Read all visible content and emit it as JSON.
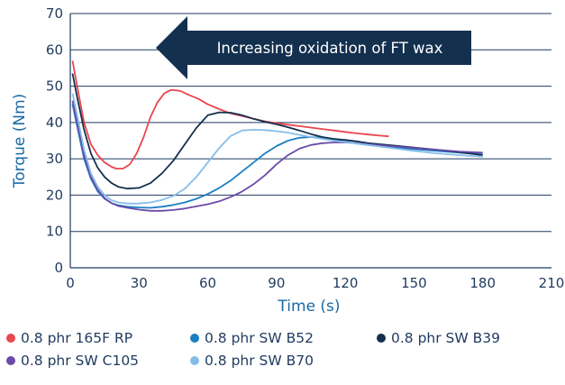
{
  "chart_data": {
    "type": "line",
    "title": "",
    "xlabel": "Time (s)",
    "ylabel": "Torque (Nm)",
    "xlim": [
      0,
      210
    ],
    "ylim": [
      0,
      70
    ],
    "xticks": [
      0,
      30,
      60,
      90,
      120,
      150,
      180,
      210
    ],
    "yticks": [
      0,
      10,
      20,
      30,
      40,
      50,
      60,
      70
    ],
    "grid": "horizontal",
    "annotation": "Increasing oxidation of FT wax",
    "legend_position": "bottom",
    "series": [
      {
        "name": "0.8 phr 165F RP",
        "color": "#e9464f",
        "points": [
          [
            1,
            57
          ],
          [
            3,
            50
          ],
          [
            6,
            40
          ],
          [
            9,
            34
          ],
          [
            12,
            31
          ],
          [
            15,
            29
          ],
          [
            18,
            27.8
          ],
          [
            20,
            27.3
          ],
          [
            23,
            27.3
          ],
          [
            26,
            28.5
          ],
          [
            29,
            31.5
          ],
          [
            32,
            36
          ],
          [
            35,
            41.5
          ],
          [
            38,
            45.5
          ],
          [
            41,
            48
          ],
          [
            44,
            49
          ],
          [
            48,
            48.7
          ],
          [
            52,
            47.5
          ],
          [
            56,
            46.5
          ],
          [
            60,
            45
          ],
          [
            65,
            43.7
          ],
          [
            70,
            42.5
          ],
          [
            75,
            41.8
          ],
          [
            80,
            41
          ],
          [
            85,
            40.3
          ],
          [
            90,
            39.8
          ],
          [
            95,
            39.4
          ],
          [
            100,
            39
          ],
          [
            105,
            38.6
          ],
          [
            110,
            38.2
          ],
          [
            115,
            37.8
          ],
          [
            120,
            37.4
          ],
          [
            125,
            37
          ],
          [
            130,
            36.7
          ],
          [
            135,
            36.4
          ],
          [
            139,
            36.2
          ]
        ]
      },
      {
        "name": "0.8 phr SW B52",
        "color": "#1b7fc1",
        "points": [
          [
            1,
            45
          ],
          [
            3,
            39
          ],
          [
            6,
            30
          ],
          [
            9,
            24.5
          ],
          [
            12,
            21
          ],
          [
            15,
            19
          ],
          [
            18,
            17.8
          ],
          [
            21,
            17.2
          ],
          [
            25,
            16.8
          ],
          [
            30,
            16.6
          ],
          [
            35,
            16.5
          ],
          [
            40,
            16.8
          ],
          [
            45,
            17.3
          ],
          [
            50,
            18
          ],
          [
            55,
            19
          ],
          [
            60,
            20.3
          ],
          [
            65,
            22
          ],
          [
            70,
            24
          ],
          [
            75,
            26.5
          ],
          [
            80,
            29
          ],
          [
            85,
            31.5
          ],
          [
            90,
            33.5
          ],
          [
            95,
            35
          ],
          [
            100,
            35.8
          ],
          [
            105,
            36
          ],
          [
            110,
            35.8
          ],
          [
            115,
            35.3
          ],
          [
            120,
            34.7
          ],
          [
            125,
            34.2
          ],
          [
            130,
            33.8
          ],
          [
            140,
            33.2
          ],
          [
            150,
            32.7
          ],
          [
            160,
            32.2
          ],
          [
            170,
            31.7
          ],
          [
            180,
            31.2
          ]
        ]
      },
      {
        "name": "0.8 phr SW B39",
        "color": "#14304f",
        "points": [
          [
            1,
            53.5
          ],
          [
            3,
            47
          ],
          [
            6,
            38
          ],
          [
            9,
            31.5
          ],
          [
            12,
            27.5
          ],
          [
            15,
            25
          ],
          [
            18,
            23.3
          ],
          [
            21,
            22.3
          ],
          [
            25,
            21.8
          ],
          [
            30,
            22
          ],
          [
            35,
            23.3
          ],
          [
            40,
            26
          ],
          [
            45,
            29.5
          ],
          [
            50,
            34
          ],
          [
            55,
            38.5
          ],
          [
            60,
            42
          ],
          [
            65,
            42.8
          ],
          [
            70,
            42.7
          ],
          [
            75,
            42
          ],
          [
            80,
            41
          ],
          [
            85,
            40.2
          ],
          [
            90,
            39.5
          ],
          [
            95,
            38.7
          ],
          [
            100,
            37.8
          ],
          [
            105,
            36.8
          ],
          [
            110,
            36
          ],
          [
            115,
            35.5
          ],
          [
            120,
            35.2
          ],
          [
            125,
            34.8
          ],
          [
            130,
            34.3
          ],
          [
            140,
            33.7
          ],
          [
            150,
            33.1
          ],
          [
            160,
            32.5
          ],
          [
            170,
            31.8
          ],
          [
            180,
            31
          ]
        ]
      },
      {
        "name": "0.8 phr SW C105",
        "color": "#6b4aa8",
        "points": [
          [
            1,
            46
          ],
          [
            3,
            40
          ],
          [
            6,
            31
          ],
          [
            9,
            25
          ],
          [
            12,
            21.5
          ],
          [
            15,
            19.2
          ],
          [
            18,
            17.8
          ],
          [
            21,
            17
          ],
          [
            25,
            16.5
          ],
          [
            30,
            16
          ],
          [
            35,
            15.7
          ],
          [
            40,
            15.7
          ],
          [
            45,
            15.9
          ],
          [
            50,
            16.3
          ],
          [
            55,
            16.9
          ],
          [
            60,
            17.5
          ],
          [
            65,
            18.3
          ],
          [
            70,
            19.5
          ],
          [
            75,
            21
          ],
          [
            80,
            23
          ],
          [
            85,
            25.5
          ],
          [
            90,
            28.5
          ],
          [
            95,
            31
          ],
          [
            100,
            32.8
          ],
          [
            105,
            33.8
          ],
          [
            110,
            34.3
          ],
          [
            115,
            34.5
          ],
          [
            120,
            34.5
          ],
          [
            125,
            34.3
          ],
          [
            130,
            34
          ],
          [
            140,
            33.5
          ],
          [
            150,
            33
          ],
          [
            160,
            32.5
          ],
          [
            170,
            32
          ],
          [
            180,
            31.7
          ]
        ]
      },
      {
        "name": "0.8 phr SW B70",
        "color": "#86bde8",
        "points": [
          [
            1,
            48
          ],
          [
            3,
            42
          ],
          [
            6,
            32.5
          ],
          [
            9,
            26
          ],
          [
            12,
            22.3
          ],
          [
            15,
            20
          ],
          [
            18,
            18.6
          ],
          [
            21,
            18
          ],
          [
            25,
            17.7
          ],
          [
            30,
            17.7
          ],
          [
            35,
            18
          ],
          [
            40,
            18.7
          ],
          [
            45,
            19.8
          ],
          [
            50,
            21.8
          ],
          [
            55,
            25
          ],
          [
            60,
            29
          ],
          [
            65,
            33
          ],
          [
            70,
            36.3
          ],
          [
            75,
            37.8
          ],
          [
            80,
            38
          ],
          [
            85,
            37.9
          ],
          [
            90,
            37.6
          ],
          [
            95,
            37.2
          ],
          [
            100,
            36.6
          ],
          [
            105,
            36
          ],
          [
            110,
            35.5
          ],
          [
            115,
            35
          ],
          [
            120,
            34.6
          ],
          [
            125,
            34.2
          ],
          [
            130,
            33.8
          ],
          [
            140,
            33
          ],
          [
            150,
            32.2
          ],
          [
            160,
            31.5
          ],
          [
            170,
            31
          ],
          [
            180,
            30.6
          ]
        ]
      }
    ]
  }
}
